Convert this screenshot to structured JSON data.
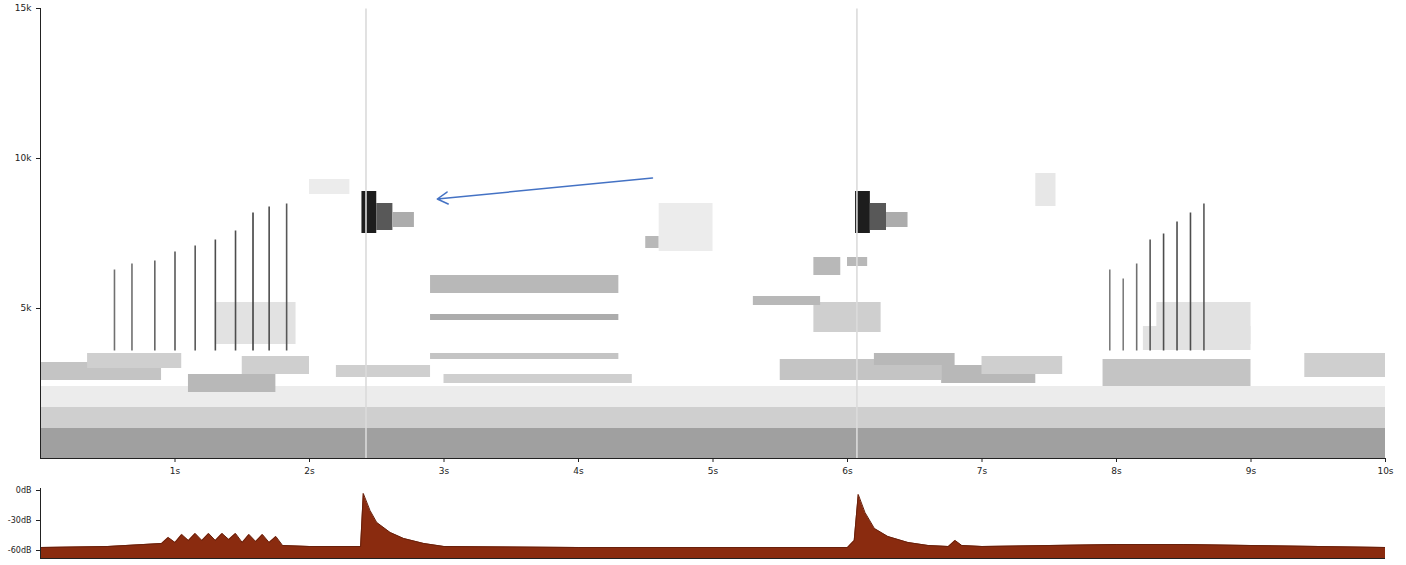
{
  "chart_data": [
    {
      "type": "spectrogram",
      "xlim": [
        0,
        10
      ],
      "xticks": [
        {
          "value": 1,
          "label": "1s"
        },
        {
          "value": 2,
          "label": "2s"
        },
        {
          "value": 3,
          "label": "3s"
        },
        {
          "value": 4,
          "label": "4s"
        },
        {
          "value": 5,
          "label": "5s"
        },
        {
          "value": 6,
          "label": "6s"
        },
        {
          "value": 7,
          "label": "7s"
        },
        {
          "value": 8,
          "label": "8s"
        },
        {
          "value": 9,
          "label": "9s"
        },
        {
          "value": 10,
          "label": "10s"
        }
      ],
      "ylim": [
        0,
        15000
      ],
      "yticks": [
        {
          "value": 5000,
          "label": "5k"
        },
        {
          "value": 10000,
          "label": "10k"
        },
        {
          "value": 15000,
          "label": "15k"
        }
      ],
      "level_lim": [
        0,
        1
      ],
      "patches": [
        {
          "t0": 0,
          "t1": 10,
          "f0": 0,
          "f1": 1000,
          "level": 0.4
        },
        {
          "t0": 0,
          "t1": 10,
          "f0": 1000,
          "f1": 1700,
          "level": 0.2
        },
        {
          "t0": 0,
          "t1": 10,
          "f0": 1700,
          "f1": 2400,
          "level": 0.08
        },
        {
          "t0": 0,
          "t1": 0.9,
          "f0": 2600,
          "f1": 3200,
          "level": 0.25
        },
        {
          "t0": 0.35,
          "t1": 1.05,
          "f0": 3000,
          "f1": 3500,
          "level": 0.2
        },
        {
          "t0": 1.1,
          "t1": 1.75,
          "f0": 2200,
          "f1": 2800,
          "level": 0.3
        },
        {
          "t0": 1.5,
          "t1": 2.0,
          "f0": 2800,
          "f1": 3400,
          "level": 0.2
        },
        {
          "t0": 2.2,
          "t1": 2.9,
          "f0": 2700,
          "f1": 3100,
          "level": 0.2
        },
        {
          "t0": 2.9,
          "t1": 4.3,
          "f0": 3300,
          "f1": 3500,
          "level": 0.25
        },
        {
          "t0": 3.0,
          "t1": 4.4,
          "f0": 2500,
          "f1": 2800,
          "level": 0.2
        },
        {
          "t0": 5.5,
          "t1": 6.7,
          "f0": 2600,
          "f1": 3300,
          "level": 0.25
        },
        {
          "t0": 5.75,
          "t1": 6.25,
          "f0": 4200,
          "f1": 5200,
          "level": 0.2
        },
        {
          "t0": 6.2,
          "t1": 6.8,
          "f0": 3100,
          "f1": 3500,
          "level": 0.3
        },
        {
          "t0": 6.7,
          "t1": 7.4,
          "f0": 2500,
          "f1": 3100,
          "level": 0.3
        },
        {
          "t0": 7.0,
          "t1": 7.6,
          "f0": 2800,
          "f1": 3400,
          "level": 0.2
        },
        {
          "t0": 7.9,
          "t1": 9.0,
          "f0": 2400,
          "f1": 3300,
          "level": 0.25
        },
        {
          "t0": 9.4,
          "t1": 10,
          "f0": 2700,
          "f1": 3500,
          "level": 0.2
        },
        {
          "t0": 8.2,
          "t1": 9.0,
          "f0": 3600,
          "f1": 4400,
          "level": 0.12
        },
        {
          "t0": 2.9,
          "t1": 4.3,
          "f0": 5500,
          "f1": 6100,
          "level": 0.3
        },
        {
          "t0": 2.9,
          "t1": 4.3,
          "f0": 4600,
          "f1": 4800,
          "level": 0.35
        },
        {
          "t0": 4.5,
          "t1": 4.6,
          "f0": 7000,
          "f1": 7400,
          "level": 0.3
        },
        {
          "t0": 5.75,
          "t1": 5.95,
          "f0": 6100,
          "f1": 6700,
          "level": 0.3
        },
        {
          "t0": 6.0,
          "t1": 6.15,
          "f0": 6400,
          "f1": 6700,
          "level": 0.3
        },
        {
          "t0": 5.3,
          "t1": 5.8,
          "f0": 5100,
          "f1": 5400,
          "level": 0.3
        },
        {
          "t0": 2.0,
          "t1": 2.3,
          "f0": 8800,
          "f1": 9300,
          "level": 0.08
        },
        {
          "t0": 4.6,
          "t1": 5.0,
          "f0": 6900,
          "f1": 8500,
          "level": 0.08
        },
        {
          "t0": 7.4,
          "t1": 7.55,
          "f0": 8400,
          "f1": 9500,
          "level": 0.1
        },
        {
          "t0": 1.3,
          "t1": 1.9,
          "f0": 3800,
          "f1": 5200,
          "level": 0.12
        },
        {
          "t0": 8.3,
          "t1": 9.0,
          "f0": 3800,
          "f1": 5200,
          "level": 0.12
        },
        {
          "t0": 2.39,
          "t1": 2.5,
          "f0": 7500,
          "f1": 8900,
          "level": 0.95
        },
        {
          "t0": 2.5,
          "t1": 2.62,
          "f0": 7600,
          "f1": 8500,
          "level": 0.7
        },
        {
          "t0": 2.62,
          "t1": 2.78,
          "f0": 7700,
          "f1": 8200,
          "level": 0.35
        },
        {
          "t0": 6.06,
          "t1": 6.17,
          "f0": 7500,
          "f1": 8900,
          "level": 0.95
        },
        {
          "t0": 6.17,
          "t1": 6.29,
          "f0": 7600,
          "f1": 8500,
          "level": 0.7
        },
        {
          "t0": 6.29,
          "t1": 6.45,
          "f0": 7700,
          "f1": 8200,
          "level": 0.35
        }
      ],
      "segments": [
        {
          "t0": 2.42,
          "t1": 2.42,
          "f0": 0,
          "f1": 15000,
          "level": 0.15
        },
        {
          "t0": 6.07,
          "t1": 6.07,
          "f0": 0,
          "f1": 15000,
          "level": 0.15
        },
        {
          "t0": 0.55,
          "t1": 0.55,
          "f0": 3600,
          "f1": 6300,
          "level": 0.6
        },
        {
          "t0": 0.68,
          "t1": 0.68,
          "f0": 3600,
          "f1": 6500,
          "level": 0.6
        },
        {
          "t0": 0.85,
          "t1": 0.85,
          "f0": 3600,
          "f1": 6600,
          "level": 0.65
        },
        {
          "t0": 1.0,
          "t1": 1.0,
          "f0": 3600,
          "f1": 6900,
          "level": 0.7
        },
        {
          "t0": 1.15,
          "t1": 1.15,
          "f0": 3600,
          "f1": 7100,
          "level": 0.7
        },
        {
          "t0": 1.3,
          "t1": 1.3,
          "f0": 3600,
          "f1": 7300,
          "level": 0.75
        },
        {
          "t0": 1.45,
          "t1": 1.45,
          "f0": 3600,
          "f1": 7600,
          "level": 0.75
        },
        {
          "t0": 1.58,
          "t1": 1.58,
          "f0": 3600,
          "f1": 8200,
          "level": 0.8
        },
        {
          "t0": 1.7,
          "t1": 1.7,
          "f0": 3600,
          "f1": 8400,
          "level": 0.75
        },
        {
          "t0": 1.83,
          "t1": 1.83,
          "f0": 3600,
          "f1": 8500,
          "level": 0.7
        },
        {
          "t0": 7.95,
          "t1": 7.95,
          "f0": 3600,
          "f1": 6300,
          "level": 0.55
        },
        {
          "t0": 8.05,
          "t1": 8.05,
          "f0": 3600,
          "f1": 6000,
          "level": 0.55
        },
        {
          "t0": 8.15,
          "t1": 8.15,
          "f0": 3600,
          "f1": 6500,
          "level": 0.6
        },
        {
          "t0": 8.25,
          "t1": 8.25,
          "f0": 3600,
          "f1": 7300,
          "level": 0.7
        },
        {
          "t0": 8.35,
          "t1": 8.35,
          "f0": 3600,
          "f1": 7500,
          "level": 0.75
        },
        {
          "t0": 8.45,
          "t1": 8.45,
          "f0": 3600,
          "f1": 7900,
          "level": 0.75
        },
        {
          "t0": 8.55,
          "t1": 8.55,
          "f0": 3600,
          "f1": 8200,
          "level": 0.75
        },
        {
          "t0": 8.65,
          "t1": 8.65,
          "f0": 3600,
          "f1": 8500,
          "level": 0.7
        }
      ],
      "arrows": [
        {
          "x1": 4.55,
          "y1": 9350,
          "x2": 2.95,
          "y2": 8650,
          "color": "#4472c4"
        }
      ]
    },
    {
      "type": "area",
      "xlim": [
        0,
        10
      ],
      "ylim": [
        -68,
        2
      ],
      "yticks": [
        {
          "value": 0,
          "label": "0dB"
        },
        {
          "value": -30,
          "label": "-30dB"
        },
        {
          "value": -60,
          "label": "-60dB"
        }
      ],
      "tick_labels": "y",
      "color": "#8a2b0f",
      "x": [
        0,
        0.5,
        0.9,
        0.95,
        1.0,
        1.05,
        1.1,
        1.15,
        1.2,
        1.25,
        1.3,
        1.35,
        1.4,
        1.45,
        1.5,
        1.55,
        1.6,
        1.65,
        1.7,
        1.75,
        1.8,
        2.0,
        2.38,
        2.4,
        2.45,
        2.5,
        2.6,
        2.7,
        2.85,
        3.0,
        4.0,
        5.0,
        6.0,
        6.05,
        6.08,
        6.13,
        6.2,
        6.3,
        6.45,
        6.6,
        6.75,
        6.8,
        6.85,
        7.0,
        8.0,
        8.5,
        9.0,
        10.0
      ],
      "values": [
        -57,
        -56,
        -53,
        -47,
        -52,
        -44,
        -50,
        -43,
        -50,
        -43,
        -50,
        -43,
        -49,
        -43,
        -52,
        -44,
        -51,
        -44,
        -52,
        -46,
        -55,
        -56,
        -56,
        -3,
        -20,
        -32,
        -42,
        -48,
        -53,
        -56,
        -57,
        -57,
        -57,
        -50,
        -4,
        -22,
        -38,
        -46,
        -52,
        -55,
        -56,
        -50,
        -55,
        -56,
        -54,
        -54,
        -55,
        -57
      ]
    }
  ]
}
